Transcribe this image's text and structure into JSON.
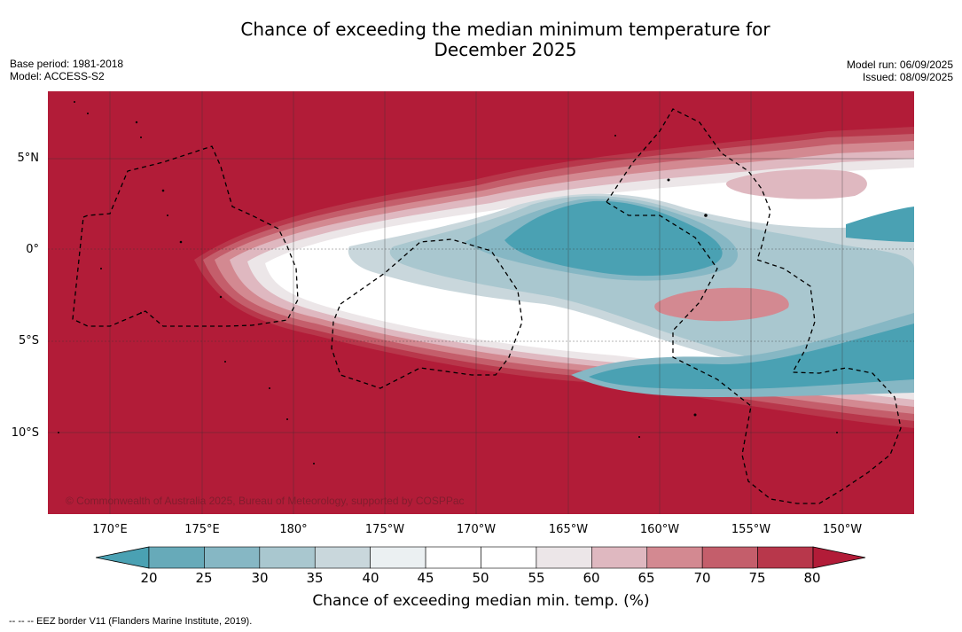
{
  "title": {
    "line1": "Chance of exceeding the median minimum temperature for",
    "line2": "December 2025"
  },
  "meta": {
    "base_period": "Base period: 1981-2018",
    "model": "Model: ACCESS-S2",
    "model_run": "Model run: 06/09/2025",
    "issued": "Issued: 08/09/2025"
  },
  "map": {
    "latitude_labels": [
      "5°N",
      "0°",
      "5°S",
      "10°S"
    ],
    "longitude_labels": [
      "170°E",
      "175°E",
      "180°",
      "175°W",
      "170°W",
      "165°W",
      "160°W",
      "155°W",
      "150°W"
    ],
    "copyright": "© Commonwealth of Australia 2025, Bureau of Meteorology, supported by COSPPac"
  },
  "colorbar": {
    "ticks": [
      "20",
      "25",
      "30",
      "35",
      "40",
      "45",
      "50",
      "55",
      "60",
      "65",
      "70",
      "75",
      "80"
    ],
    "label": "Chance of exceeding median min. temp. (%)",
    "colors": [
      "#4aa1b3",
      "#67aab9",
      "#86b7c4",
      "#a9c7cf",
      "#c9d7dc",
      "#ebf0f2",
      "#ffffff",
      "#ffffff",
      "#ece6e8",
      "#dfb8c0",
      "#d38991",
      "#c45e6b",
      "#b8374b",
      "#b21c38"
    ]
  },
  "footer": {
    "legend": "--  --  -- EEZ border V11 (Flanders Marine Institute, 2019)."
  }
}
